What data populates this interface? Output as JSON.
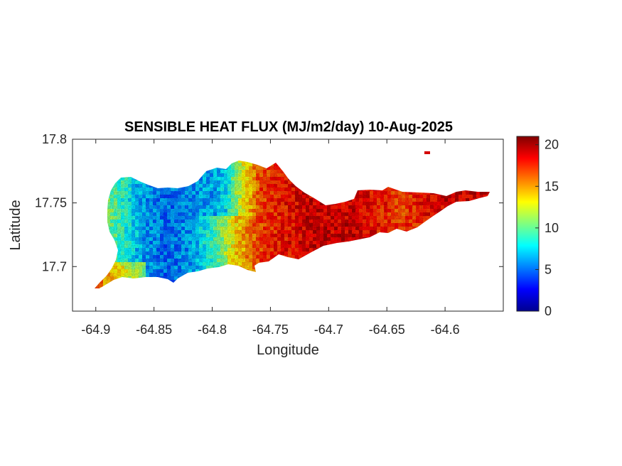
{
  "chart_data": {
    "type": "heatmap",
    "title": "SENSIBLE HEAT FLUX (MJ/m2/day) 10-Aug-2025",
    "xlabel": "Longitude",
    "ylabel": "Latitude",
    "xlim": [
      -64.92,
      -64.55
    ],
    "ylim": [
      17.665,
      17.8
    ],
    "xticks": [
      -64.9,
      -64.85,
      -64.8,
      -64.75,
      -64.7,
      -64.65,
      -64.6
    ],
    "xtick_labels": [
      "-64.9",
      "-64.85",
      "-64.8",
      "-64.75",
      "-64.7",
      "-64.65",
      "-64.6"
    ],
    "yticks": [
      17.7,
      17.75,
      17.8
    ],
    "ytick_labels": [
      "17.7",
      "17.75",
      "17.8"
    ],
    "colorbar": {
      "colormap": "jet",
      "limits": [
        0,
        21
      ],
      "ticks": [
        0,
        5,
        10,
        15,
        20
      ],
      "tick_labels": [
        "0",
        "5",
        "10",
        "15",
        "20"
      ]
    },
    "value_profile": {
      "description_lon": [
        -64.9,
        -64.88,
        -64.86,
        -64.84,
        -64.82,
        -64.8,
        -64.78,
        -64.76,
        -64.74,
        -64.72,
        -64.7,
        -64.68,
        -64.66,
        -64.64,
        -64.62,
        -64.6,
        -64.58
      ],
      "description_val": [
        12,
        9,
        6,
        5,
        6,
        9,
        14,
        17,
        18,
        19,
        19,
        19,
        18,
        17,
        18,
        19,
        19
      ]
    },
    "grid": false
  }
}
